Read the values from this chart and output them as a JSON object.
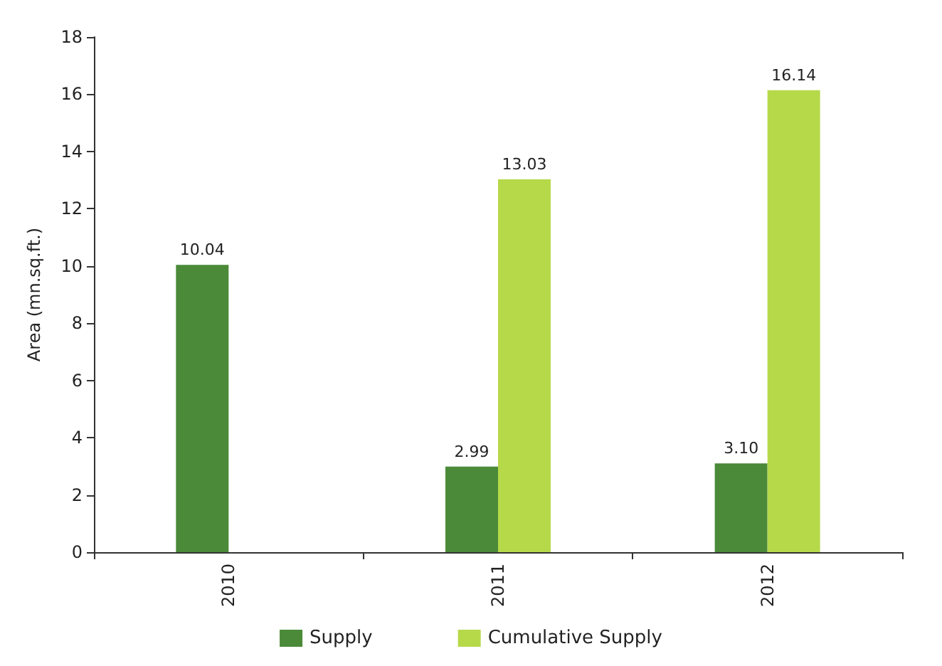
{
  "chart_data": {
    "type": "bar",
    "ylabel": "Area (mn.sq.ft.)",
    "categories": [
      "2010",
      "2011",
      "2012"
    ],
    "series": [
      {
        "name": "Supply",
        "color": "#4a8a38",
        "values": [
          10.04,
          2.99,
          3.1
        ],
        "value_labels": [
          "10.04",
          "2.99",
          "3.10"
        ]
      },
      {
        "name": "Cumulative Supply",
        "color": "#b6d94a",
        "values": [
          null,
          13.03,
          16.14
        ],
        "value_labels": [
          null,
          "13.03",
          "16.14"
        ]
      }
    ],
    "ylim": [
      0,
      18
    ],
    "yticks": [
      0,
      2,
      4,
      6,
      8,
      10,
      12,
      14,
      16,
      18
    ],
    "grid": false,
    "legend": "bottom"
  }
}
